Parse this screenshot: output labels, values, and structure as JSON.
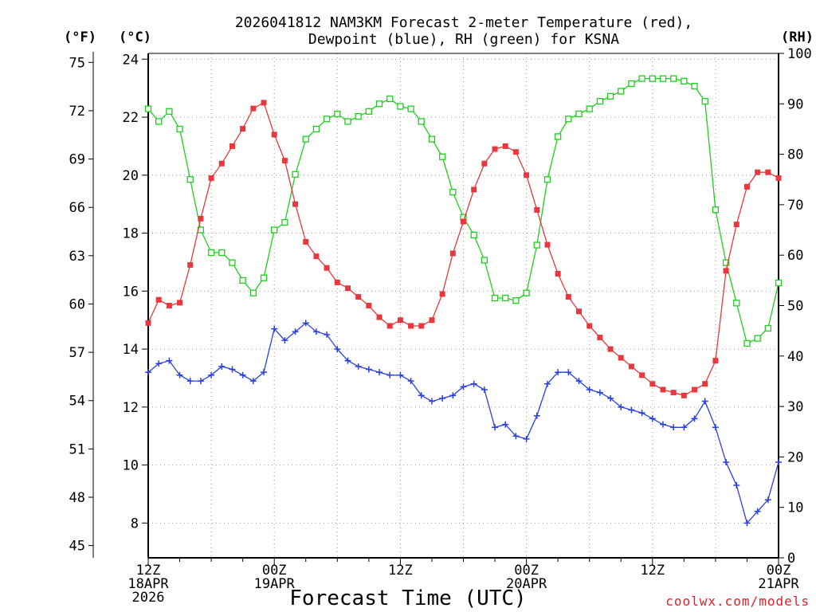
{
  "chart_data": {
    "type": "line",
    "title": [
      "2026041812 NAM3KM Forecast 2-meter Temperature (red),",
      "Dewpoint (blue), RH (green) for KSNA"
    ],
    "xlabel": "Forecast Time (UTC)",
    "credit": "coolwx.com/models",
    "unit_labels": {
      "fahrenheit": "(°F)",
      "celsius": "(°C)",
      "rh": "(RH)"
    },
    "x_range_hours": [
      0,
      60
    ],
    "x_ticks": [
      {
        "hour": 0,
        "lines": [
          "12Z",
          "18APR",
          "2026"
        ]
      },
      {
        "hour": 12,
        "lines": [
          "00Z",
          "19APR"
        ]
      },
      {
        "hour": 24,
        "lines": [
          "12Z"
        ]
      },
      {
        "hour": 36,
        "lines": [
          "00Z",
          "20APR"
        ]
      },
      {
        "hour": 48,
        "lines": [
          "12Z"
        ]
      },
      {
        "hour": 60,
        "lines": [
          "00Z",
          "21APR"
        ]
      }
    ],
    "celsius_axis": {
      "range": [
        6.8,
        24.2
      ],
      "ticks": [
        "8",
        "10",
        "12",
        "14",
        "16",
        "18",
        "20",
        "22",
        "24"
      ]
    },
    "fahrenheit_axis": {
      "range": [
        44.24,
        75.56
      ],
      "ticks": [
        "45",
        "48",
        "51",
        "54",
        "57",
        "60",
        "63",
        "66",
        "69",
        "72",
        "75"
      ]
    },
    "rh_axis": {
      "range": [
        0,
        100
      ],
      "ticks": [
        "0",
        "10",
        "20",
        "30",
        "40",
        "50",
        "60",
        "70",
        "80",
        "90",
        "100"
      ]
    },
    "colors": {
      "temperature": "#e8383d",
      "dewpoint": "#2a40e0",
      "rh": "#1ecf1e",
      "grid": "#999999"
    },
    "series": [
      {
        "name": "Temperature",
        "units": "C",
        "hours": [
          0,
          1,
          2,
          3,
          4,
          5,
          6,
          7,
          8,
          9,
          10,
          11,
          12,
          13,
          14,
          15,
          16,
          17,
          18,
          19,
          20,
          21,
          22,
          23,
          24,
          25,
          26,
          27,
          28,
          29,
          30,
          31,
          32,
          33,
          34,
          35,
          36,
          37,
          38,
          39,
          40,
          41,
          42,
          43,
          44,
          45,
          46,
          47,
          48,
          49,
          50,
          51,
          52,
          53,
          54,
          55,
          56,
          57,
          58,
          59,
          60
        ],
        "values": [
          14.9,
          15.7,
          15.5,
          15.6,
          16.9,
          18.5,
          19.9,
          20.4,
          21.0,
          21.6,
          22.3,
          22.5,
          21.4,
          20.5,
          19.0,
          17.7,
          17.2,
          16.8,
          16.3,
          16.1,
          15.8,
          15.5,
          15.1,
          14.8,
          15.0,
          14.8,
          14.8,
          15.0,
          15.9,
          17.3,
          18.4,
          19.5,
          20.4,
          20.9,
          21.0,
          20.8,
          20.0,
          18.8,
          17.6,
          16.6,
          15.8,
          15.3,
          14.8,
          14.4,
          14.0,
          13.7,
          13.4,
          13.1,
          12.8,
          12.6,
          12.5,
          12.4,
          12.6,
          12.8,
          13.6,
          16.7,
          18.3,
          19.6,
          20.1,
          20.1,
          19.9
        ]
      },
      {
        "name": "Dewpoint",
        "units": "C",
        "hours": [
          0,
          1,
          2,
          3,
          4,
          5,
          6,
          7,
          8,
          9,
          10,
          11,
          12,
          13,
          14,
          15,
          16,
          17,
          18,
          19,
          20,
          21,
          22,
          23,
          24,
          25,
          26,
          27,
          28,
          29,
          30,
          31,
          32,
          33,
          34,
          35,
          36,
          37,
          38,
          39,
          40,
          41,
          42,
          43,
          44,
          45,
          46,
          47,
          48,
          49,
          50,
          51,
          52,
          53,
          54,
          55,
          56,
          57,
          58,
          59,
          60
        ],
        "values": [
          13.2,
          13.5,
          13.6,
          13.1,
          12.9,
          12.9,
          13.1,
          13.4,
          13.3,
          13.1,
          12.9,
          13.2,
          14.7,
          14.3,
          14.6,
          14.9,
          14.6,
          14.5,
          14.0,
          13.6,
          13.4,
          13.3,
          13.2,
          13.1,
          13.1,
          12.9,
          12.4,
          12.2,
          12.3,
          12.4,
          12.7,
          12.8,
          12.6,
          11.3,
          11.4,
          11.0,
          10.9,
          11.7,
          12.8,
          13.2,
          13.2,
          12.9,
          12.6,
          12.5,
          12.3,
          12.0,
          11.9,
          11.8,
          11.6,
          11.4,
          11.3,
          11.3,
          11.6,
          12.2,
          11.3,
          10.1,
          9.3,
          8.0,
          8.4,
          8.8,
          10.1
        ]
      },
      {
        "name": "RH",
        "units": "%",
        "hours": [
          0,
          1,
          2,
          3,
          4,
          5,
          6,
          7,
          8,
          9,
          10,
          11,
          12,
          13,
          14,
          15,
          16,
          17,
          18,
          19,
          20,
          21,
          22,
          23,
          24,
          25,
          26,
          27,
          28,
          29,
          30,
          31,
          32,
          33,
          34,
          35,
          36,
          37,
          38,
          39,
          40,
          41,
          42,
          43,
          44,
          45,
          46,
          47,
          48,
          49,
          50,
          51,
          52,
          53,
          54,
          55,
          56,
          57,
          58,
          59,
          60
        ],
        "values": [
          89,
          86.5,
          88.5,
          85,
          75,
          65,
          60.5,
          60.5,
          58.5,
          55,
          52.5,
          55.5,
          65,
          66.5,
          76,
          83,
          85,
          87,
          88,
          86.5,
          87.5,
          88.5,
          90,
          91,
          89.5,
          89,
          86.5,
          83,
          79.5,
          72.5,
          67.5,
          64,
          59,
          51.5,
          51.5,
          51,
          52.5,
          62,
          75,
          83.5,
          87,
          88,
          89,
          90.5,
          91.5,
          92.5,
          94,
          95,
          95,
          95,
          95,
          94.5,
          93.5,
          90.5,
          69,
          58.5,
          50.5,
          42.5,
          43.5,
          45.5,
          54.5
        ]
      }
    ]
  }
}
